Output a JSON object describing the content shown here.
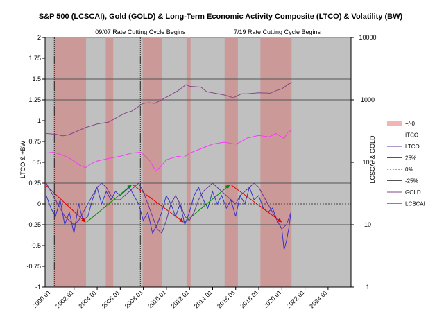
{
  "chart_data": {
    "type": "line",
    "title": "S&P 500 (LCSCAI), Gold (GOLD) & Long-Term Economic Activity Composite (LTCO) & Volatility (BW)",
    "ylabel_left": "LTCO & +BW",
    "ylabel_right": "LCSCAI & GOLD",
    "y_left_ticks": [
      "2",
      "1.75",
      "1.5",
      "1.25",
      "1",
      "0.75",
      "0.5",
      "0.25",
      "0",
      "-0.25",
      "-0.5",
      "-0.75",
      "-1"
    ],
    "y_left_range": [
      -1,
      2
    ],
    "y_right_ticks": [
      "10000",
      "1000",
      "100",
      "10",
      "1"
    ],
    "y_right_range": [
      1,
      10000
    ],
    "y_right_scale": "log",
    "x_ticks": [
      "2000.01",
      "2002.01",
      "2004.01",
      "2006.01",
      "2008.01",
      "2010.01",
      "2012.01",
      "2014.01",
      "2016.01",
      "2018.01",
      "2020.01",
      "2022.01",
      "2024.01"
    ],
    "x_range": [
      1999.5,
      2026.0
    ],
    "plot_background": "#c0c0c0",
    "recession_color": "#cc9999",
    "recession_bands": [
      [
        2000.25,
        2003.05
      ],
      [
        2004.75,
        2005.4
      ],
      [
        2007.95,
        2009.65
      ],
      [
        2011.75,
        2012.1
      ],
      [
        2015.05,
        2016.2
      ],
      [
        2018.15,
        2020.85
      ]
    ],
    "horizontal_lines": [
      {
        "y": 0.25,
        "style": "solid",
        "color": "#555555"
      },
      {
        "y": 0,
        "style": "dotted",
        "color": "#444444"
      },
      {
        "y": -0.25,
        "style": "solid",
        "color": "#555555"
      }
    ],
    "vertical_markers": [
      {
        "x": 2000.3,
        "color": "#222222",
        "style": "dotted"
      },
      {
        "x": 2007.75,
        "color": "#222222",
        "style": "dotted",
        "label": "09/07 Rate Cutting Cycle Begins"
      },
      {
        "x": 2019.6,
        "color": "#222222",
        "style": "dotted",
        "label": "7/19 Rate Cutting Cycle Begins"
      }
    ],
    "trend_arrows": [
      {
        "from": [
          1999.6,
          0.22
        ],
        "to": [
          2003.0,
          -0.22
        ],
        "color": "#dd0000"
      },
      {
        "from": [
          2003.1,
          -0.22
        ],
        "to": [
          2007.0,
          0.23
        ],
        "color": "#008800"
      },
      {
        "from": [
          2007.1,
          0.23
        ],
        "to": [
          2011.5,
          -0.22
        ],
        "color": "#dd0000"
      },
      {
        "from": [
          2011.6,
          -0.22
        ],
        "to": [
          2015.5,
          0.23
        ],
        "color": "#008800"
      },
      {
        "from": [
          2015.6,
          0.23
        ],
        "to": [
          2020.0,
          -0.22
        ],
        "color": "#dd0000"
      }
    ],
    "series": [
      {
        "name": "+/-0",
        "kind": "band",
        "color": "#f2b4b4"
      },
      {
        "name": "ITCO",
        "axis": "left",
        "color": "#3333cc",
        "style": "solid",
        "x": [
          1999.6,
          2000.0,
          2000.4,
          2000.8,
          2001.2,
          2001.6,
          2002.0,
          2002.4,
          2002.8,
          2003.2,
          2003.6,
          2004.0,
          2004.4,
          2004.8,
          2005.2,
          2005.6,
          2006.0,
          2006.4,
          2006.8,
          2007.2,
          2007.6,
          2008.0,
          2008.4,
          2008.8,
          2009.2,
          2009.6,
          2010.0,
          2010.4,
          2010.8,
          2011.2,
          2011.6,
          2012.0,
          2012.4,
          2012.8,
          2013.2,
          2013.6,
          2014.0,
          2014.4,
          2014.8,
          2015.2,
          2015.6,
          2016.0,
          2016.4,
          2016.8,
          2017.2,
          2017.6,
          2018.0,
          2018.4,
          2018.8,
          2019.2,
          2019.6,
          2020.0,
          2020.2,
          2020.4,
          2020.6,
          2020.8
        ],
        "y": [
          0.1,
          -0.05,
          -0.15,
          0.05,
          -0.25,
          -0.1,
          -0.35,
          0.0,
          -0.2,
          -0.15,
          0.05,
          0.2,
          0.0,
          0.15,
          0.05,
          0.15,
          0.1,
          0.15,
          0.2,
          0.1,
          0.0,
          -0.2,
          -0.1,
          -0.35,
          -0.25,
          -0.1,
          0.1,
          0.0,
          -0.15,
          0.0,
          -0.25,
          -0.1,
          0.1,
          0.2,
          0.05,
          -0.05,
          0.15,
          0.0,
          0.1,
          -0.05,
          0.05,
          -0.15,
          0.1,
          0.0,
          0.2,
          0.05,
          0.1,
          -0.05,
          -0.1,
          -0.05,
          -0.2,
          -0.3,
          -0.55,
          -0.45,
          -0.3,
          -0.1
        ]
      },
      {
        "name": "LTCO",
        "axis": "left",
        "color": "#663399",
        "style": "solid",
        "x": [
          1999.6,
          2000.0,
          2000.4,
          2000.8,
          2001.2,
          2001.6,
          2002.0,
          2002.4,
          2002.8,
          2003.2,
          2003.6,
          2004.0,
          2004.4,
          2004.8,
          2005.2,
          2005.6,
          2006.0,
          2006.4,
          2006.8,
          2007.2,
          2007.6,
          2008.0,
          2008.4,
          2008.8,
          2009.2,
          2009.6,
          2010.0,
          2010.4,
          2010.8,
          2011.2,
          2011.6,
          2012.0,
          2012.4,
          2012.8,
          2013.2,
          2013.6,
          2014.0,
          2014.4,
          2014.8,
          2015.2,
          2015.6,
          2016.0,
          2016.4,
          2016.8,
          2017.2,
          2017.6,
          2018.0,
          2018.4,
          2018.8,
          2019.2,
          2019.6,
          2020.0,
          2020.4,
          2020.8
        ],
        "y": [
          0.25,
          0.15,
          0.05,
          -0.05,
          -0.15,
          -0.2,
          -0.25,
          -0.2,
          -0.1,
          0.0,
          0.1,
          0.2,
          0.25,
          0.2,
          0.1,
          0.05,
          0.05,
          0.1,
          0.15,
          0.2,
          0.25,
          0.15,
          0.0,
          -0.15,
          -0.3,
          -0.35,
          -0.2,
          0.0,
          0.1,
          0.0,
          -0.15,
          -0.2,
          -0.1,
          0.05,
          0.15,
          0.2,
          0.25,
          0.2,
          0.15,
          0.1,
          0.05,
          0.0,
          0.1,
          0.15,
          0.2,
          0.25,
          0.2,
          0.1,
          0.0,
          -0.1,
          -0.2,
          -0.3,
          -0.25,
          -0.1
        ]
      },
      {
        "name": "25%",
        "kind": "line",
        "color": "#555555",
        "style": "solid"
      },
      {
        "name": "0%",
        "kind": "line",
        "color": "#444444",
        "style": "dotted"
      },
      {
        "name": "-25%",
        "kind": "line",
        "color": "#555555",
        "style": "solid"
      },
      {
        "name": "GOLD",
        "axis": "right",
        "color": "#884488",
        "style": "solid",
        "x": [
          1999.6,
          2000.5,
          2001.0,
          2001.5,
          2002.0,
          2003.0,
          2004.0,
          2005.0,
          2006.0,
          2006.5,
          2007.0,
          2008.0,
          2008.5,
          2009.0,
          2010.0,
          2011.0,
          2011.7,
          2012.0,
          2013.0,
          2013.5,
          2014.0,
          2015.0,
          2015.8,
          2016.5,
          2017.0,
          2018.0,
          2019.0,
          2019.5,
          2020.0,
          2020.6,
          2020.9
        ],
        "y": [
          290,
          280,
          265,
          275,
          300,
          360,
          410,
          440,
          560,
          620,
          660,
          880,
          900,
          880,
          1100,
          1400,
          1750,
          1650,
          1600,
          1350,
          1300,
          1200,
          1080,
          1250,
          1250,
          1300,
          1280,
          1400,
          1500,
          1800,
          1900
        ]
      },
      {
        "name": "LCSCAI",
        "axis": "right",
        "color": "#ff33ff",
        "style": "solid",
        "x": [
          1999.6,
          2000.2,
          2000.8,
          2001.5,
          2002.0,
          2002.5,
          2003.0,
          2003.5,
          2004.0,
          2005.0,
          2006.0,
          2007.0,
          2007.8,
          2008.5,
          2009.1,
          2009.5,
          2010.0,
          2011.0,
          2011.5,
          2012.0,
          2013.0,
          2014.0,
          2015.0,
          2016.0,
          2016.5,
          2017.0,
          2018.0,
          2018.9,
          2019.5,
          2020.2,
          2020.5,
          2020.9
        ],
        "y": [
          140,
          145,
          135,
          120,
          105,
          90,
          82,
          95,
          105,
          115,
          125,
          140,
          145,
          110,
          72,
          85,
          110,
          125,
          120,
          140,
          165,
          195,
          210,
          195,
          215,
          245,
          270,
          255,
          290,
          240,
          300,
          330
        ]
      }
    ],
    "legend_position": "right"
  }
}
